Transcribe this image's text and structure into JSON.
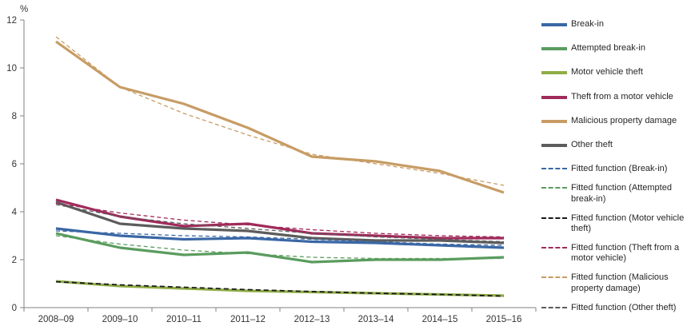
{
  "chart_data": {
    "type": "line",
    "title": "",
    "xlabel": "",
    "ylabel": "%",
    "ylim": [
      0,
      12
    ],
    "y_ticks": [
      0,
      2,
      4,
      6,
      8,
      10,
      12
    ],
    "grid": false,
    "legend_position": "right",
    "categories": [
      "2008–09",
      "2009–10",
      "2010–11",
      "2011–12",
      "2012–13",
      "2013–14",
      "2014–15",
      "2015–16"
    ],
    "series": [
      {
        "name": "Break-in",
        "style": "solid",
        "color": "#3A67A5",
        "values": [
          3.3,
          3.0,
          2.85,
          2.9,
          2.75,
          2.7,
          2.6,
          2.5
        ]
      },
      {
        "name": "Attempted break-in",
        "style": "solid",
        "color": "#5A9C5E",
        "values": [
          3.1,
          2.5,
          2.2,
          2.3,
          1.9,
          2.0,
          2.0,
          2.1
        ]
      },
      {
        "name": "Motor vehicle theft",
        "style": "solid",
        "color": "#8FAD45",
        "values": [
          1.1,
          0.9,
          0.8,
          0.7,
          0.65,
          0.6,
          0.55,
          0.5
        ]
      },
      {
        "name": "Theft from a motor vehicle",
        "style": "solid",
        "color": "#A02B5B",
        "values": [
          4.5,
          3.8,
          3.4,
          3.5,
          3.1,
          3.0,
          2.9,
          2.9
        ]
      },
      {
        "name": "Malicious property damage",
        "style": "solid",
        "color": "#C79C64",
        "values": [
          11.1,
          9.2,
          8.5,
          7.5,
          6.3,
          6.1,
          5.7,
          4.8
        ]
      },
      {
        "name": "Other theft",
        "style": "solid",
        "color": "#5C5C5C",
        "values": [
          4.4,
          3.5,
          3.3,
          3.2,
          2.9,
          2.8,
          2.8,
          2.7
        ]
      },
      {
        "name": "Fitted function (Break-in)",
        "style": "dashed",
        "color": "#3A67A5",
        "values": [
          3.2,
          3.1,
          3.0,
          2.95,
          2.85,
          2.75,
          2.65,
          2.6
        ]
      },
      {
        "name": "Fitted function (Attempted break-in)",
        "style": "dashed",
        "color": "#5A9C5E",
        "values": [
          3.0,
          2.65,
          2.4,
          2.25,
          2.1,
          2.05,
          2.05,
          2.05
        ]
      },
      {
        "name": "Fitted function (Motor vehicle theft)",
        "style": "dashed",
        "color": "#1A1A1A",
        "values": [
          1.08,
          0.95,
          0.85,
          0.75,
          0.67,
          0.6,
          0.55,
          0.48
        ]
      },
      {
        "name": "Fitted function (Theft from a motor vehicle)",
        "style": "dashed",
        "color": "#A02B5B",
        "values": [
          4.35,
          3.95,
          3.65,
          3.45,
          3.25,
          3.1,
          3.0,
          2.95
        ]
      },
      {
        "name": "Fitted function (Malicious property damage)",
        "style": "dashed",
        "color": "#C79C64",
        "values": [
          11.3,
          9.2,
          8.1,
          7.2,
          6.4,
          6.0,
          5.6,
          5.1
        ]
      },
      {
        "name": "Fitted function (Other theft)",
        "style": "dashed",
        "color": "#5C5C5C",
        "values": [
          4.3,
          3.8,
          3.5,
          3.3,
          3.1,
          2.95,
          2.85,
          2.75
        ]
      }
    ],
    "axis_color": "#808080",
    "tick_label_color": "#333333"
  }
}
